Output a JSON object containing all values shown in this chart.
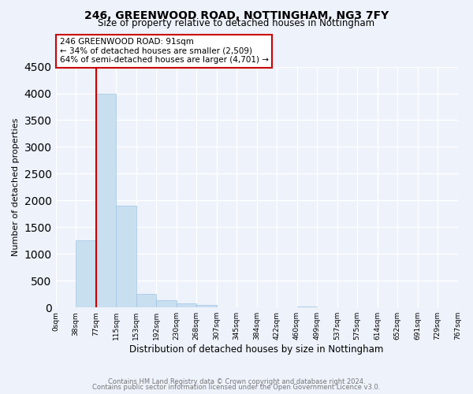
{
  "title": "246, GREENWOOD ROAD, NOTTINGHAM, NG3 7FY",
  "subtitle": "Size of property relative to detached houses in Nottingham",
  "xlabel": "Distribution of detached houses by size in Nottingham",
  "ylabel": "Number of detached properties",
  "footnote1": "Contains HM Land Registry data © Crown copyright and database right 2024.",
  "footnote2": "Contains public sector information licensed under the Open Government Licence v3.0.",
  "property_size_bin": 2,
  "annotation_line1": "246 GREENWOOD ROAD: 91sqm",
  "annotation_line2": "← 34% of detached houses are smaller (2,509)",
  "annotation_line3": "64% of semi-detached houses are larger (4,701) →",
  "bin_labels": [
    "0sqm",
    "38sqm",
    "77sqm",
    "115sqm",
    "153sqm",
    "192sqm",
    "230sqm",
    "268sqm",
    "307sqm",
    "345sqm",
    "384sqm",
    "422sqm",
    "460sqm",
    "499sqm",
    "537sqm",
    "575sqm",
    "614sqm",
    "652sqm",
    "691sqm",
    "729sqm",
    "767sqm"
  ],
  "bar_heights": [
    0,
    1250,
    4000,
    1900,
    250,
    130,
    80,
    45,
    0,
    0,
    0,
    0,
    15,
    0,
    0,
    0,
    0,
    0,
    0,
    0
  ],
  "bar_color": "#c8dff0",
  "bar_edge_color": "#a0c4e0",
  "line_color": "#cc0000",
  "box_edge_color": "#cc0000",
  "ylim": [
    0,
    4500
  ],
  "yticks": [
    0,
    500,
    1000,
    1500,
    2000,
    2500,
    3000,
    3500,
    4000,
    4500
  ],
  "background_color": "#edf2fb",
  "grid_color": "white"
}
